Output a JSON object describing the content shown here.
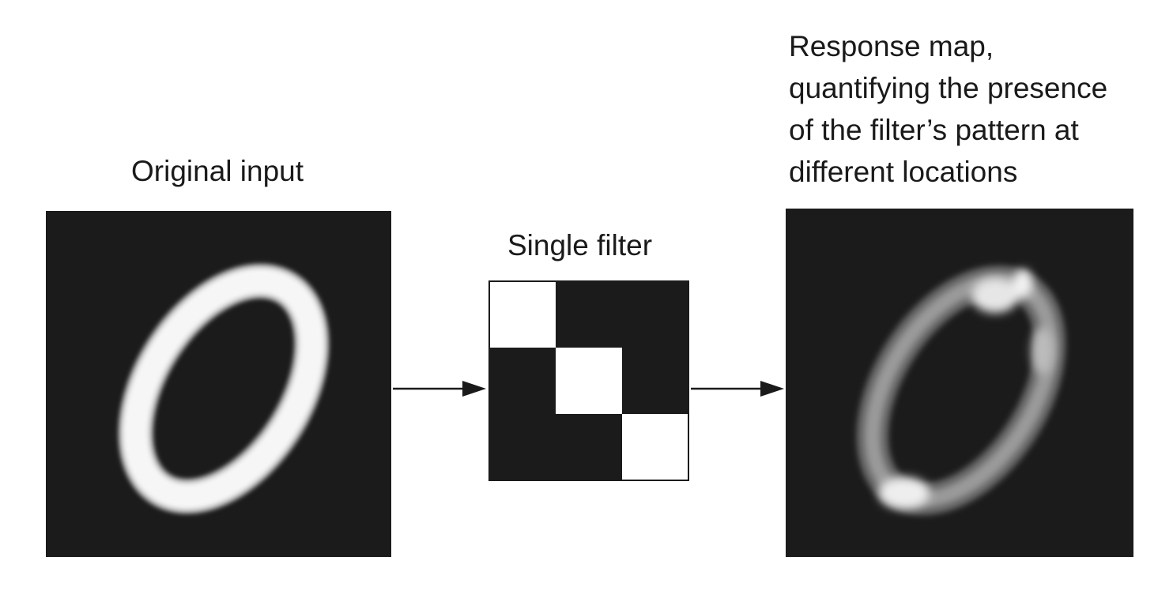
{
  "labels": {
    "original_input": "Original input",
    "single_filter": "Single filter",
    "response_lines": [
      "Response map,",
      "quantifying the presence",
      "of the filter’s pattern at",
      "different locations"
    ]
  },
  "filter": {
    "rows": 3,
    "cols": 3,
    "pattern": [
      [
        1,
        0,
        0
      ],
      [
        0,
        1,
        0
      ],
      [
        0,
        0,
        1
      ]
    ]
  },
  "colors": {
    "background": "#1c1b1c",
    "stroke": "#ffffff",
    "arrow": "#1a1a1a"
  }
}
